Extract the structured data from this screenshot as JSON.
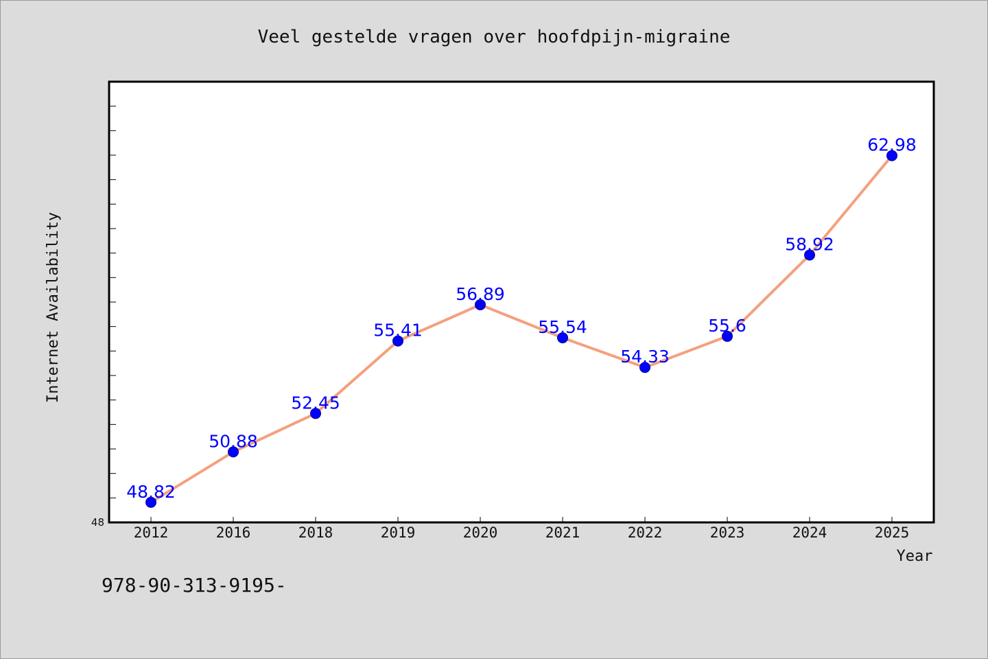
{
  "chart_data": {
    "type": "line",
    "title": "Veel gestelde vragen over hoofdpijn-migraine",
    "xlabel": "Year",
    "ylabel": "Internet Availability",
    "categories": [
      "2012",
      "2016",
      "2018",
      "2019",
      "2020",
      "2021",
      "2022",
      "2023",
      "2024",
      "2025"
    ],
    "series": [
      {
        "values": [
          48.82,
          50.88,
          52.45,
          55.41,
          56.89,
          55.54,
          54.33,
          55.6,
          58.92,
          62.98
        ],
        "labels": [
          "48.82",
          "50.88",
          "52.45",
          "55.41",
          "56.89",
          "55.54",
          "54.33",
          "55.6",
          "58.92",
          "62.98"
        ]
      }
    ],
    "ylim": [
      48,
      66
    ],
    "y_tick_labels": [
      "48"
    ],
    "grid": false,
    "line_color": "#f4a07e",
    "marker_color": "#0000ff",
    "label_color": "#0000ff"
  },
  "footnote": "978-90-313-9195-"
}
